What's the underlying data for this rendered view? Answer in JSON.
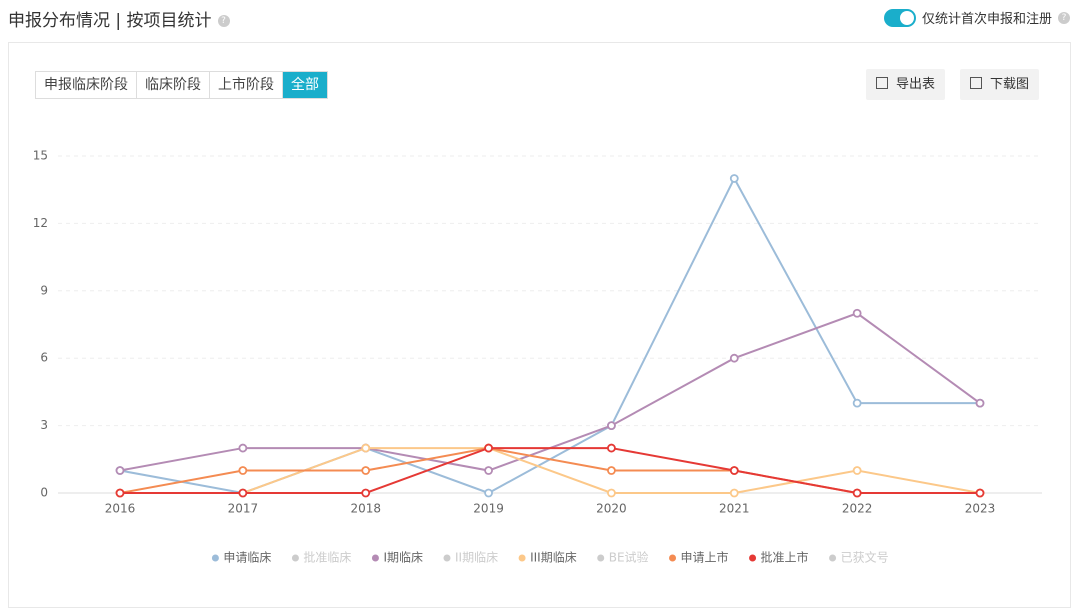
{
  "header": {
    "title": "申报分布情况 | 按项目统计",
    "toggle_label": "仅统计首次申报和注册"
  },
  "tabs": [
    "申报临床阶段",
    "临床阶段",
    "上市阶段",
    "全部"
  ],
  "buttons": [
    "导出表",
    "下载图"
  ],
  "chart_data": {
    "type": "line",
    "categories": [
      "2016",
      "2017",
      "2018",
      "2019",
      "2020",
      "2021",
      "2022",
      "2023"
    ],
    "ylim": [
      0,
      15
    ],
    "yticks": [
      0,
      3,
      6,
      9,
      12,
      15
    ],
    "grid": true,
    "legend": "bottom",
    "series": [
      {
        "name": "申请临床",
        "color": "#9cbcd9",
        "values": [
          1,
          0,
          2,
          0,
          3,
          14,
          4,
          4
        ]
      },
      {
        "name": "批准临床",
        "color": "#cccccc",
        "visible": false
      },
      {
        "name": "I期临床",
        "color": "#b48bb4",
        "values": [
          1,
          2,
          2,
          1,
          3,
          6,
          8,
          4
        ]
      },
      {
        "name": "II期临床",
        "color": "#cccccc",
        "visible": false
      },
      {
        "name": "III期临床",
        "color": "#fcc889",
        "values": [
          0,
          0,
          2,
          2,
          0,
          0,
          1,
          0
        ]
      },
      {
        "name": "BE试验",
        "color": "#cccccc",
        "visible": false
      },
      {
        "name": "申请上市",
        "color": "#f48b52",
        "values": [
          0,
          1,
          1,
          2,
          1,
          1,
          0,
          0
        ]
      },
      {
        "name": "批准上市",
        "color": "#e53935",
        "values": [
          0,
          0,
          0,
          2,
          2,
          1,
          0,
          0
        ]
      },
      {
        "name": "已获文号",
        "color": "#cccccc",
        "visible": false
      }
    ]
  }
}
